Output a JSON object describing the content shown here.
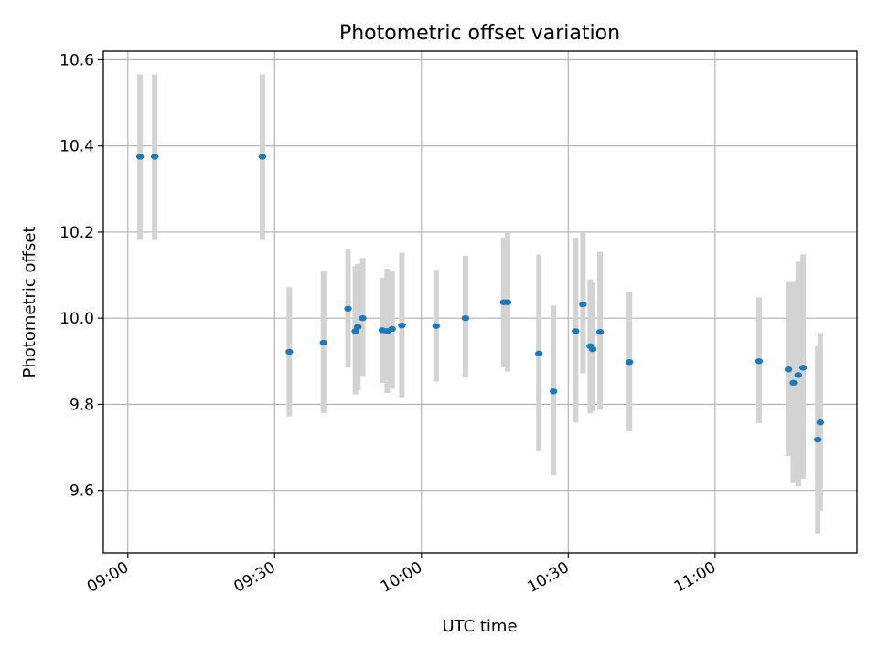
{
  "chart_data": {
    "type": "scatter",
    "title": "Photometric offset variation",
    "xlabel": "UTC time",
    "ylabel": "Photometric offset",
    "xlim": [
      "08:55",
      "11:29"
    ],
    "ylim": [
      9.455,
      10.62
    ],
    "xticks": [
      "09:00",
      "09:30",
      "10:00",
      "10:30",
      "11:00"
    ],
    "yticks": [
      9.6,
      9.8,
      10.0,
      10.2,
      10.4,
      10.6
    ],
    "grid": true,
    "colors": {
      "points": "#1f77b4",
      "errorbars": "#d3d3d3",
      "grid": "#b0b0b0"
    },
    "points": [
      {
        "t": "09:02.5",
        "y": 10.375,
        "lo": 10.182,
        "hi": 10.566
      },
      {
        "t": "09:05.5",
        "y": 10.375,
        "lo": 10.182,
        "hi": 10.566
      },
      {
        "t": "09:27.5",
        "y": 10.375,
        "lo": 10.182,
        "hi": 10.566
      },
      {
        "t": "09:33",
        "y": 9.922,
        "lo": 9.772,
        "hi": 10.072
      },
      {
        "t": "09:40",
        "y": 9.943,
        "lo": 9.78,
        "hi": 10.11
      },
      {
        "t": "09:45",
        "y": 10.022,
        "lo": 9.885,
        "hi": 10.16
      },
      {
        "t": "09:46.5",
        "y": 9.97,
        "lo": 9.823,
        "hi": 10.12
      },
      {
        "t": "09:47",
        "y": 9.98,
        "lo": 9.833,
        "hi": 10.126
      },
      {
        "t": "09:48",
        "y": 10.0,
        "lo": 9.866,
        "hi": 10.14
      },
      {
        "t": "09:52",
        "y": 9.972,
        "lo": 9.85,
        "hi": 10.094
      },
      {
        "t": "09:53",
        "y": 9.97,
        "lo": 9.826,
        "hi": 10.115
      },
      {
        "t": "09:54",
        "y": 9.975,
        "lo": 9.836,
        "hi": 10.11
      },
      {
        "t": "09:56",
        "y": 9.983,
        "lo": 9.816,
        "hi": 10.152
      },
      {
        "t": "10:03",
        "y": 9.982,
        "lo": 9.853,
        "hi": 10.112
      },
      {
        "t": "10:09",
        "y": 10.0,
        "lo": 9.862,
        "hi": 10.145
      },
      {
        "t": "10:16.8",
        "y": 10.037,
        "lo": 9.886,
        "hi": 10.188
      },
      {
        "t": "10:17.6",
        "y": 10.037,
        "lo": 9.876,
        "hi": 10.2
      },
      {
        "t": "10:24",
        "y": 9.918,
        "lo": 9.692,
        "hi": 10.148
      },
      {
        "t": "10:27",
        "y": 9.83,
        "lo": 9.635,
        "hi": 10.029
      },
      {
        "t": "10:31.5",
        "y": 9.97,
        "lo": 9.758,
        "hi": 10.187
      },
      {
        "t": "10:33",
        "y": 10.032,
        "lo": 9.872,
        "hi": 10.198
      },
      {
        "t": "10:34.5",
        "y": 9.935,
        "lo": 9.779,
        "hi": 10.09
      },
      {
        "t": "10:35",
        "y": 9.928,
        "lo": 9.784,
        "hi": 10.082
      },
      {
        "t": "10:36.5",
        "y": 9.968,
        "lo": 9.787,
        "hi": 10.154
      },
      {
        "t": "10:42.5",
        "y": 9.898,
        "lo": 9.737,
        "hi": 10.061
      },
      {
        "t": "11:09",
        "y": 9.9,
        "lo": 9.756,
        "hi": 10.048
      },
      {
        "t": "11:15",
        "y": 9.881,
        "lo": 9.68,
        "hi": 10.084
      },
      {
        "t": "11:16",
        "y": 9.85,
        "lo": 9.619,
        "hi": 10.084
      },
      {
        "t": "11:17",
        "y": 9.868,
        "lo": 9.609,
        "hi": 10.131
      },
      {
        "t": "11:18",
        "y": 9.885,
        "lo": 9.627,
        "hi": 10.148
      },
      {
        "t": "11:21",
        "y": 9.718,
        "lo": 9.5,
        "hi": 9.935
      },
      {
        "t": "11:21.5",
        "y": 9.758,
        "lo": 9.553,
        "hi": 9.965
      }
    ]
  }
}
